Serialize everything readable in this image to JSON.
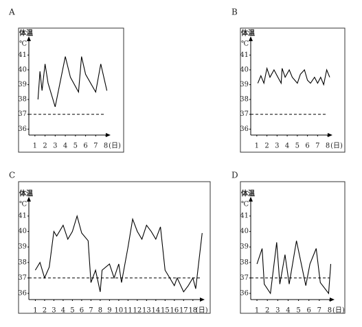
{
  "chart_data": [
    {
      "type": "line",
      "title": "A",
      "y_label": "体温",
      "y_unit": "℃",
      "x_unit": "(日)",
      "color": "#000000",
      "x": [
        1.3,
        1.5,
        1.7,
        2.0,
        2.3,
        3.0,
        4.0,
        4.5,
        5.3,
        5.6,
        6.0,
        7.0,
        7.5,
        8.1
      ],
      "values": [
        38,
        39.9,
        38.6,
        40.4,
        39.1,
        37.5,
        40.9,
        39.5,
        38.5,
        40.9,
        39.7,
        38.5,
        40.4,
        38.6
      ],
      "xlim": [
        0.4,
        8.4
      ],
      "ylim": [
        35.6,
        41.8
      ],
      "xticks": [
        1,
        2,
        3,
        4,
        5,
        6,
        7,
        8
      ],
      "yticks": [
        36,
        37,
        38,
        39,
        40,
        41
      ],
      "reference_line": 37
    },
    {
      "type": "line",
      "title": "B",
      "y_label": "体温",
      "y_unit": "℃",
      "x_unit": "(日)",
      "color": "#000000",
      "x": [
        1.1,
        1.4,
        1.7,
        2.0,
        2.3,
        2.7,
        3.0,
        3.4,
        3.5,
        3.8,
        4.2,
        4.5,
        5.0,
        5.3,
        5.7,
        6.0,
        6.3,
        6.7,
        7.0,
        7.3,
        7.6,
        7.9,
        8.2
      ],
      "values": [
        39.1,
        39.6,
        39.1,
        40.1,
        39.5,
        40,
        39.6,
        39.1,
        40.1,
        39.5,
        40,
        39.5,
        39.1,
        39.7,
        40,
        39.3,
        39.1,
        39.5,
        39.1,
        39.5,
        39,
        40,
        39.5
      ],
      "xlim": [
        0.4,
        8.4
      ],
      "ylim": [
        35.6,
        41.8
      ],
      "xticks": [
        1,
        2,
        3,
        4,
        5,
        6,
        7,
        8
      ],
      "yticks": [
        36,
        37,
        38,
        39,
        40,
        41
      ],
      "reference_line": 37
    },
    {
      "type": "line",
      "title": "C",
      "y_label": "体温",
      "y_unit": "℃",
      "x_unit": "(日)",
      "color": "#000000",
      "x": [
        1,
        1.5,
        2,
        2.5,
        3,
        3.3,
        4,
        4.5,
        5,
        5.5,
        6,
        6.7,
        7,
        7.5,
        8,
        8.2,
        9,
        9.5,
        10,
        10.3,
        11,
        11.5,
        12,
        12.5,
        13,
        13.5,
        14,
        14.5,
        15,
        15.5,
        16,
        16.3,
        17,
        17.5,
        18,
        18.3,
        19
      ],
      "values": [
        37.5,
        38,
        37,
        37.7,
        40,
        39.7,
        40.4,
        39.5,
        40,
        41,
        39.9,
        39.4,
        36.7,
        37.5,
        36.1,
        37.5,
        37.9,
        37,
        37.9,
        36.7,
        39,
        40.8,
        40,
        39.5,
        40.4,
        40,
        39.5,
        40.3,
        37.5,
        37,
        36.5,
        37,
        36.1,
        36.5,
        37,
        36.3,
        39.9
      ],
      "xlim": [
        0.3,
        19.2
      ],
      "ylim": [
        35.6,
        41.8
      ],
      "xticks": [
        1,
        2,
        3,
        4,
        5,
        6,
        7,
        8,
        9,
        10,
        11,
        12,
        13,
        14,
        15,
        16,
        17,
        18
      ],
      "yticks": [
        36,
        37,
        38,
        39,
        40,
        41
      ],
      "reference_line": 37
    },
    {
      "type": "line",
      "title": "D",
      "y_label": "体温",
      "y_unit": "℃",
      "x_unit": "(日)",
      "color": "#000000",
      "x": [
        1,
        1.5,
        1.7,
        2.3,
        2.9,
        3.2,
        3.7,
        4.1,
        4.8,
        5.7,
        6.1,
        6.7,
        7.1,
        7.9,
        8.1
      ],
      "values": [
        37.9,
        38.9,
        36.6,
        36,
        39.3,
        36.6,
        38.5,
        36.6,
        39.4,
        36.5,
        37.9,
        38.9,
        36.7,
        36,
        37.9
      ],
      "xlim": [
        0.4,
        8.4
      ],
      "ylim": [
        35.6,
        41.8
      ],
      "xticks": [
        1,
        2,
        3,
        4,
        5,
        6,
        7,
        8
      ],
      "yticks": [
        36,
        37,
        38,
        39,
        40,
        41
      ],
      "reference_line": 37
    }
  ]
}
